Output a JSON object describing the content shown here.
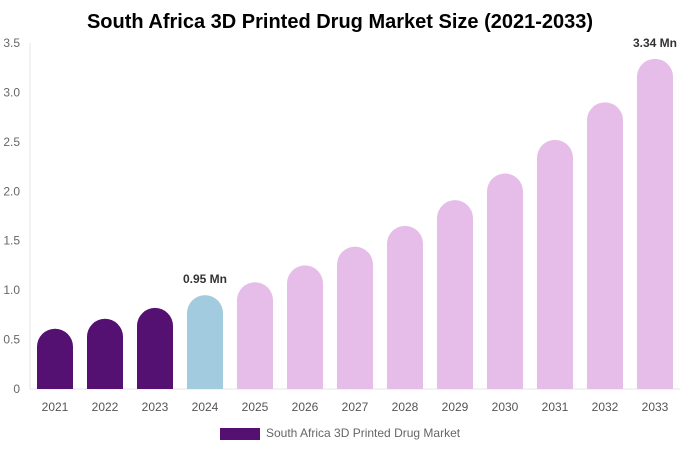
{
  "chart_data": {
    "type": "bar",
    "title": "South Africa 3D Printed Drug Market Size (2021-2033)",
    "categories": [
      "2021",
      "2022",
      "2023",
      "2024",
      "2025",
      "2026",
      "2027",
      "2028",
      "2029",
      "2030",
      "2031",
      "2032",
      "2033"
    ],
    "series": [
      {
        "name": "South Africa 3D Printed Drug Market",
        "values": [
          0.61,
          0.71,
          0.82,
          0.95,
          1.08,
          1.25,
          1.44,
          1.65,
          1.91,
          2.18,
          2.52,
          2.9,
          3.34
        ]
      }
    ],
    "data_labels": {
      "3": "0.95 Mn",
      "12": "3.34 Mn"
    },
    "ylim": [
      0,
      3.5
    ],
    "yticks": [
      "0",
      "0.5",
      "1.0",
      "1.5",
      "2.0",
      "2.5",
      "3.0",
      "3.5"
    ],
    "grid": false,
    "legend_position": "bottom",
    "colors": {
      "historical": "#541172",
      "current": "#a3cbe0",
      "forecast": "#e6bde9"
    }
  }
}
